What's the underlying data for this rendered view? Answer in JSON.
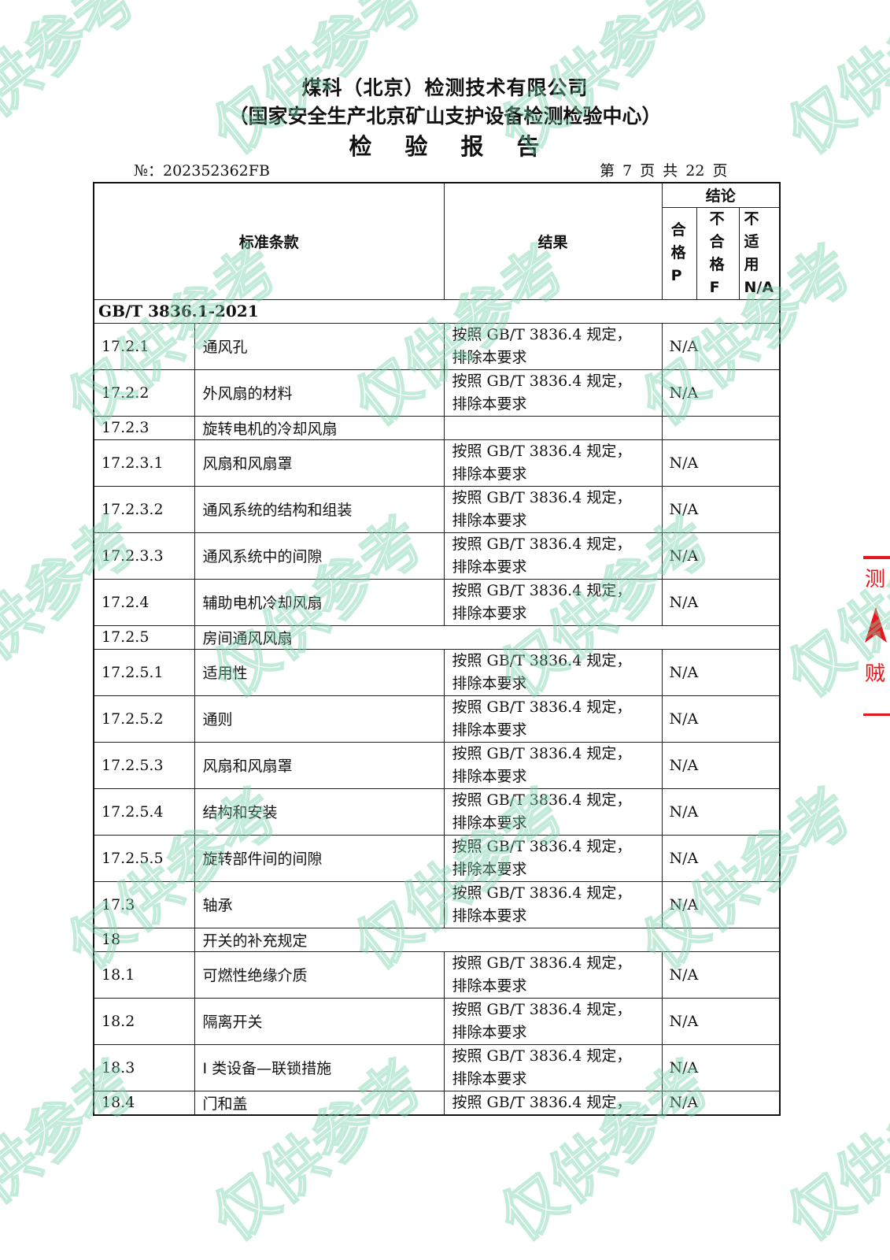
{
  "header": {
    "company": "煤科（北京）检测技术有限公司",
    "center": "（国家安全生产北京矿山支护设备检测检验中心）",
    "doc_title": "检验报告",
    "report_no": "№：202352362FB",
    "page_info": "第 7 页 共 22 页"
  },
  "table": {
    "headers": {
      "clause": "标准条款",
      "result": "结果",
      "conclusion": "结论",
      "pass": "合格P",
      "fail": "不合格F",
      "na": "不适用N/A"
    },
    "section": "GB/T 3836.1-2021",
    "rows": [
      {
        "code": "17.2.1",
        "clause": "通风孔",
        "result": [
          "按照 GB/T 3836.4 规定，",
          "排除本要求"
        ],
        "conclusion": "N/A"
      },
      {
        "code": "17.2.2",
        "clause": "外风扇的材料",
        "result": [
          "按照 GB/T 3836.4 规定，",
          "排除本要求"
        ],
        "conclusion": "N/A"
      },
      {
        "code": "17.2.3",
        "clause": "旋转电机的冷却风扇",
        "result": [],
        "conclusion": "",
        "kind": "sub"
      },
      {
        "code": "17.2.3.1",
        "clause": "风扇和风扇罩",
        "result": [
          "按照 GB/T 3836.4 规定，",
          "排除本要求"
        ],
        "conclusion": "N/A"
      },
      {
        "code": "17.2.3.2",
        "clause": "通风系统的结构和组装",
        "result": [
          "按照 GB/T 3836.4 规定，",
          "排除本要求"
        ],
        "conclusion": "N/A"
      },
      {
        "code": "17.2.3.3",
        "clause": "通风系统中的间隙",
        "result": [
          "按照 GB/T 3836.4 规定，",
          "排除本要求"
        ],
        "conclusion": "N/A"
      },
      {
        "code": "17.2.4",
        "clause": "辅助电机冷却风扇",
        "result": [
          "按照 GB/T 3836.4 规定，",
          "排除本要求"
        ],
        "conclusion": "N/A"
      },
      {
        "code": "17.2.5",
        "clause": "房间通风风扇",
        "result": [],
        "conclusion": "",
        "kind": "span"
      },
      {
        "code": "17.2.5.1",
        "clause": "适用性",
        "result": [
          "按照 GB/T 3836.4 规定，",
          "排除本要求"
        ],
        "conclusion": "N/A"
      },
      {
        "code": "17.2.5.2",
        "clause": "通则",
        "result": [
          "按照 GB/T 3836.4 规定，",
          "排除本要求"
        ],
        "conclusion": "N/A"
      },
      {
        "code": "17.2.5.3",
        "clause": "风扇和风扇罩",
        "result": [
          "按照 GB/T 3836.4 规定，",
          "排除本要求"
        ],
        "conclusion": "N/A"
      },
      {
        "code": "17.2.5.4",
        "clause": "结构和安装",
        "result": [
          "按照 GB/T 3836.4 规定，",
          "排除本要求"
        ],
        "conclusion": "N/A"
      },
      {
        "code": "17.2.5.5",
        "clause": "旋转部件间的间隙",
        "result": [
          "按照 GB/T 3836.4 规定，",
          "排除本要求"
        ],
        "conclusion": "N/A"
      },
      {
        "code": "17.3",
        "clause": "轴承",
        "result": [
          "按照 GB/T 3836.4 规定，",
          "排除本要求"
        ],
        "conclusion": "N/A"
      },
      {
        "code": "18",
        "clause": "开关的补充规定",
        "result": [],
        "conclusion": "",
        "kind": "span"
      },
      {
        "code": "18.1",
        "clause": "可燃性绝缘介质",
        "result": [
          "按照 GB/T 3836.4 规定，",
          "排除本要求"
        ],
        "conclusion": "N/A"
      },
      {
        "code": "18.2",
        "clause": "隔离开关",
        "result": [
          "按照 GB/T 3836.4 规定，",
          "排除本要求"
        ],
        "conclusion": "N/A"
      },
      {
        "code": "18.3",
        "clause": "I 类设备—联锁措施",
        "result": [
          "按照 GB/T 3836.4 规定，",
          "排除本要求"
        ],
        "conclusion": "N/A"
      },
      {
        "code": "18.4",
        "clause": "门和盖",
        "result": [
          "按照 GB/T 3836.4 规定，"
        ],
        "conclusion": "N/A"
      }
    ]
  },
  "watermark": {
    "text": "仅供参考",
    "color": "#78d2aa"
  },
  "seal": {
    "color": "#e8151b"
  }
}
